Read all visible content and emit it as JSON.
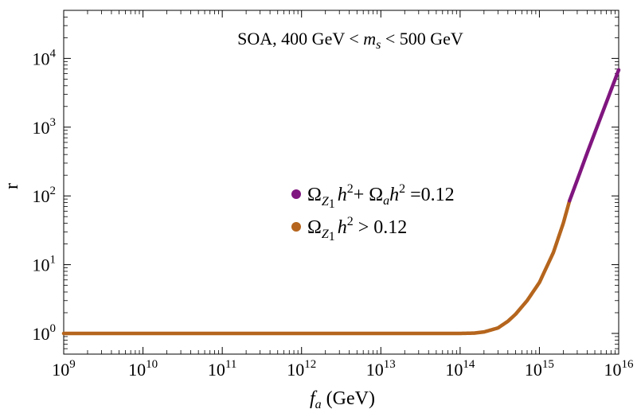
{
  "chart_data": {
    "type": "line",
    "title": "",
    "annotation": {
      "prefix": "SOA, 400 GeV < ",
      "var_main": "m",
      "var_sub": "s",
      "suffix": " < 500 GeV"
    },
    "xlabel": {
      "main": "f",
      "sub": "a",
      "rest": " (GeV)"
    },
    "ylabel": "r",
    "x_scale": "log",
    "y_scale": "log",
    "xlim": [
      1000000000.0,
      1e+16
    ],
    "ylim": [
      0.5,
      50000
    ],
    "x_ticks": [
      {
        "value": 1000000000.0,
        "base": "10",
        "exp": "9"
      },
      {
        "value": 10000000000.0,
        "base": "10",
        "exp": "10"
      },
      {
        "value": 100000000000.0,
        "base": "10",
        "exp": "11"
      },
      {
        "value": 1000000000000.0,
        "base": "10",
        "exp": "12"
      },
      {
        "value": 10000000000000.0,
        "base": "10",
        "exp": "13"
      },
      {
        "value": 100000000000000.0,
        "base": "10",
        "exp": "14"
      },
      {
        "value": 1000000000000000.0,
        "base": "10",
        "exp": "15"
      },
      {
        "value": 1e+16,
        "base": "10",
        "exp": "16"
      }
    ],
    "y_ticks": [
      {
        "value": 1,
        "base": "10",
        "exp": "0"
      },
      {
        "value": 10,
        "base": "10",
        "exp": "1"
      },
      {
        "value": 100,
        "base": "10",
        "exp": "2"
      },
      {
        "value": 1000,
        "base": "10",
        "exp": "3"
      },
      {
        "value": 10000,
        "base": "10",
        "exp": "4"
      }
    ],
    "series": [
      {
        "name": "Omega_Z1 h^2 > 0.12",
        "color": "#b5651d",
        "points": [
          [
            1000000000.0,
            1.0
          ],
          [
            10000000000.0,
            1.0
          ],
          [
            100000000000.0,
            1.0
          ],
          [
            1000000000000.0,
            1.0
          ],
          [
            10000000000000.0,
            1.0
          ],
          [
            100000000000000.0,
            1.0
          ],
          [
            150000000000000.0,
            1.01
          ],
          [
            200000000000000.0,
            1.05
          ],
          [
            300000000000000.0,
            1.2
          ],
          [
            400000000000000.0,
            1.5
          ],
          [
            500000000000000.0,
            1.9
          ],
          [
            700000000000000.0,
            3.0
          ],
          [
            1000000000000000.0,
            5.5
          ],
          [
            1500000000000000.0,
            15
          ],
          [
            2000000000000000.0,
            40
          ],
          [
            2400000000000000.0,
            85
          ]
        ]
      },
      {
        "name": "Omega_Z1 h^2 + Omega_a h^2 = 0.12",
        "color": "#80167f",
        "points": [
          [
            2400000000000000.0,
            85
          ],
          [
            3000000000000000.0,
            170
          ],
          [
            4000000000000000.0,
            420
          ],
          [
            5000000000000000.0,
            830
          ],
          [
            7000000000000000.0,
            2300
          ],
          [
            1e+16,
            6800
          ]
        ]
      }
    ],
    "legend": {
      "placement": "center-right",
      "entries": [
        {
          "color": "#80167f",
          "omega": "Ω",
          "z": "Z",
          "z_sub": "1",
          "h": "h",
          "h_sup": "2",
          "mid": "+ ",
          "omega2": "Ω",
          "a": "a",
          "h2": "h",
          "h2_sup": "2",
          "rest": " =0.12"
        },
        {
          "color": "#b5651d",
          "omega": "Ω",
          "z": "Z",
          "z_sub": "1",
          "h": "h",
          "h_sup": "2",
          "rest": " > 0.12"
        }
      ]
    }
  }
}
